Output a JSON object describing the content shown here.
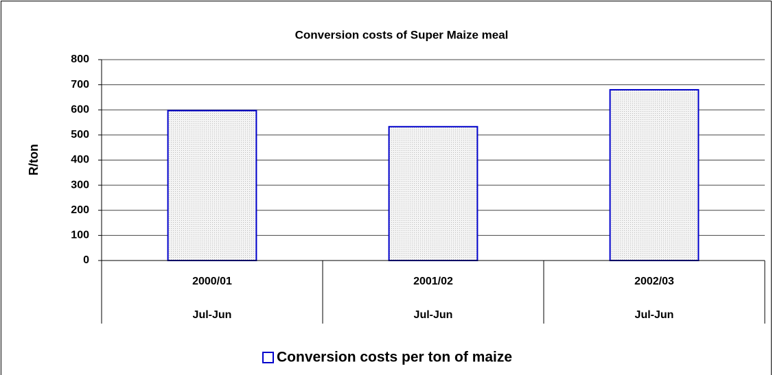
{
  "chart_data": {
    "type": "bar",
    "title": "Conversion costs of Super Maize meal",
    "ylabel": "R/ton",
    "categories": [
      "2000/01",
      "2001/02",
      "2002/03"
    ],
    "subcategories": [
      "Jul-Jun",
      "Jul-Jun",
      "Jul-Jun"
    ],
    "series": [
      {
        "name": "Conversion costs per ton of maize",
        "color": "#0000cc",
        "values": [
          597,
          533,
          680
        ]
      }
    ],
    "ylim": [
      0,
      800
    ],
    "yticks": [
      0,
      100,
      200,
      300,
      400,
      500,
      600,
      700,
      800
    ],
    "grid": true,
    "legend": "bottom"
  }
}
